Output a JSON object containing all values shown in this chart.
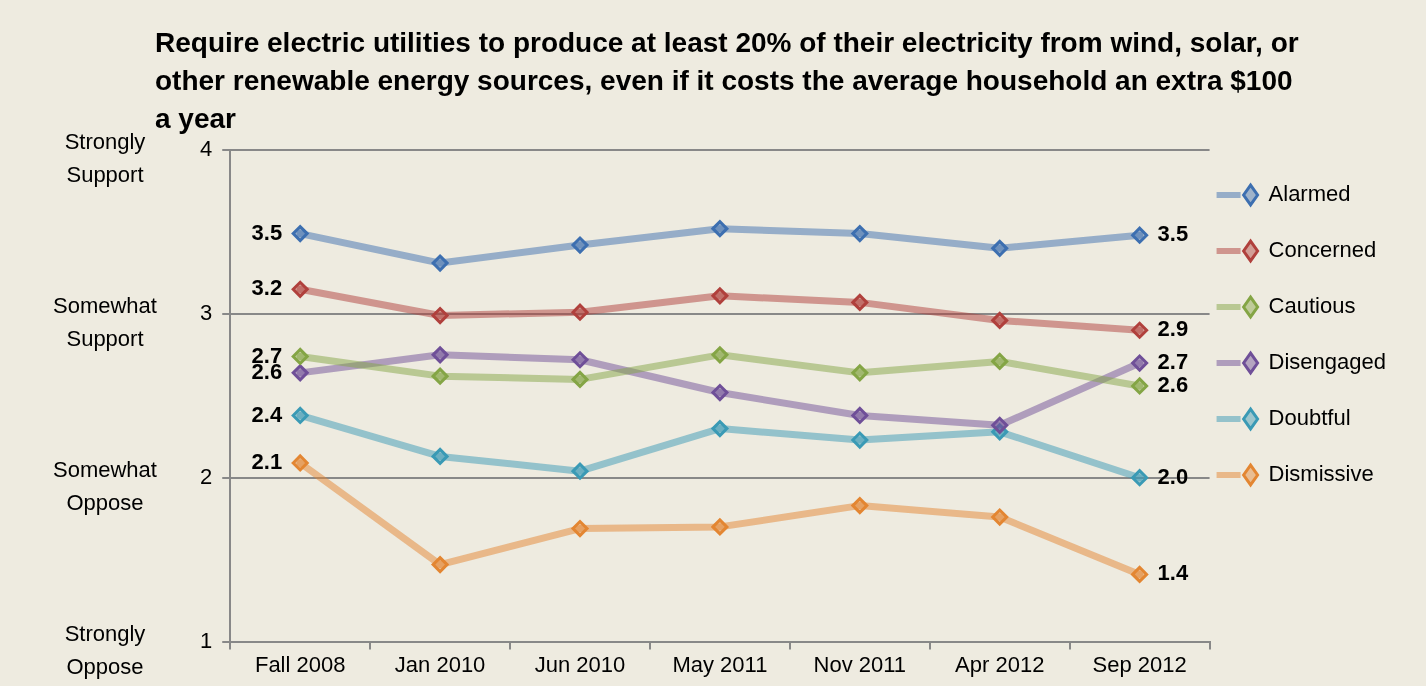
{
  "chart_data": {
    "type": "line",
    "title": "Require electric utilities to produce at least 20% of their electricity from wind, solar, or other renewable energy sources, even if it costs the average household an extra $100 a year",
    "categories": [
      "Fall 2008",
      "Jan 2010",
      "Jun 2010",
      "May 2011",
      "Nov 2011",
      "Apr 2012",
      "Sep 2012"
    ],
    "series": [
      {
        "name": "Alarmed",
        "color": "#3d6fb0",
        "values": [
          3.49,
          3.31,
          3.42,
          3.52,
          3.49,
          3.4,
          3.48
        ],
        "value_labels": [
          "3.5",
          null,
          null,
          null,
          null,
          null,
          "3.5"
        ]
      },
      {
        "name": "Concerned",
        "color": "#b0403c",
        "values": [
          3.15,
          2.99,
          3.01,
          3.11,
          3.07,
          2.96,
          2.9
        ],
        "value_labels": [
          "3.2",
          null,
          null,
          null,
          null,
          null,
          "2.9"
        ]
      },
      {
        "name": "Cautious",
        "color": "#84a545",
        "values": [
          2.74,
          2.62,
          2.6,
          2.75,
          2.64,
          2.71,
          2.56
        ],
        "value_labels": [
          "2.7",
          null,
          null,
          null,
          null,
          null,
          "2.6"
        ]
      },
      {
        "name": "Disengaged",
        "color": "#6f4f98",
        "values": [
          2.64,
          2.75,
          2.72,
          2.52,
          2.38,
          2.32,
          2.7
        ],
        "value_labels": [
          "2.6",
          null,
          null,
          null,
          null,
          null,
          "2.7"
        ]
      },
      {
        "name": "Doubtful",
        "color": "#3a9ab5",
        "values": [
          2.38,
          2.13,
          2.04,
          2.3,
          2.23,
          2.28,
          2.0
        ],
        "value_labels": [
          "2.4",
          null,
          null,
          null,
          null,
          null,
          "2.0"
        ]
      },
      {
        "name": "Dismissive",
        "color": "#e38632",
        "values": [
          2.09,
          1.47,
          1.69,
          1.7,
          1.83,
          1.76,
          1.41
        ],
        "value_labels": [
          "2.1",
          null,
          null,
          null,
          null,
          null,
          "1.4"
        ]
      }
    ],
    "ylim": [
      1,
      4
    ],
    "yticks": [
      1,
      2,
      3,
      4
    ],
    "annotations": [
      "Strongly Support",
      "Somewhat Support",
      "Somewhat Oppose",
      "Strongly Oppose"
    ],
    "grid": "y",
    "legend": "right",
    "marker": "diamond",
    "line_style": "solid"
  }
}
